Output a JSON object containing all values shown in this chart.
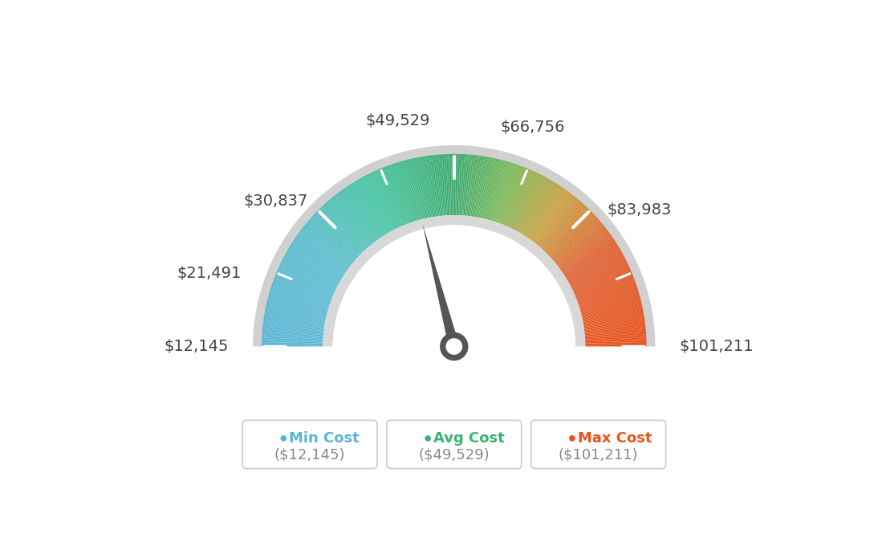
{
  "min_value": 12145,
  "max_value": 101211,
  "avg_value": 49529,
  "label_values": [
    12145,
    21491,
    30837,
    49529,
    66756,
    83983,
    101211
  ],
  "label_strings": [
    "$12,145",
    "$21,491",
    "$30,837",
    "$49,529",
    "$66,756",
    "$83,983",
    "$101,211"
  ],
  "legend_items": [
    {
      "label": "Min Cost",
      "value": "($12,145)",
      "color": "#5ab4d6"
    },
    {
      "label": "Avg Cost",
      "value": "($49,529)",
      "color": "#3cb371"
    },
    {
      "label": "Max Cost",
      "value": "($101,211)",
      "color": "#e8541e"
    }
  ],
  "colors_gradient": [
    [
      0.0,
      "#5ab4d6"
    ],
    [
      0.2,
      "#5abccc"
    ],
    [
      0.35,
      "#44c4a0"
    ],
    [
      0.5,
      "#3daa6e"
    ],
    [
      0.6,
      "#7ab858"
    ],
    [
      0.7,
      "#c8a040"
    ],
    [
      0.82,
      "#dd6030"
    ],
    [
      1.0,
      "#e8501a"
    ]
  ],
  "background_color": "#ffffff",
  "needle_color": "#555555",
  "tick_color": "#ffffff"
}
